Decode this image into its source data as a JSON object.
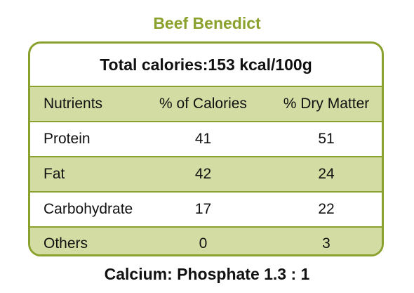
{
  "title": "Beef Benedict",
  "total_calories": "Total calories:153 kcal/100g",
  "table": {
    "headers": [
      "Nutrients",
      "% of Calories",
      "% Dry Matter"
    ],
    "rows": [
      {
        "nutrient": "Protein",
        "calories": "41",
        "dry_matter": "51"
      },
      {
        "nutrient": "Fat",
        "calories": "42",
        "dry_matter": "24"
      },
      {
        "nutrient": "Carbohydrate",
        "calories": "17",
        "dry_matter": "22"
      },
      {
        "nutrient": "Others",
        "calories": "0",
        "dry_matter": "3"
      }
    ]
  },
  "footer": "Calcium: Phosphate 1.3 : 1",
  "colors": {
    "accent": "#8aa12e",
    "shaded_row": "#d3dca3",
    "text": "#111111"
  }
}
